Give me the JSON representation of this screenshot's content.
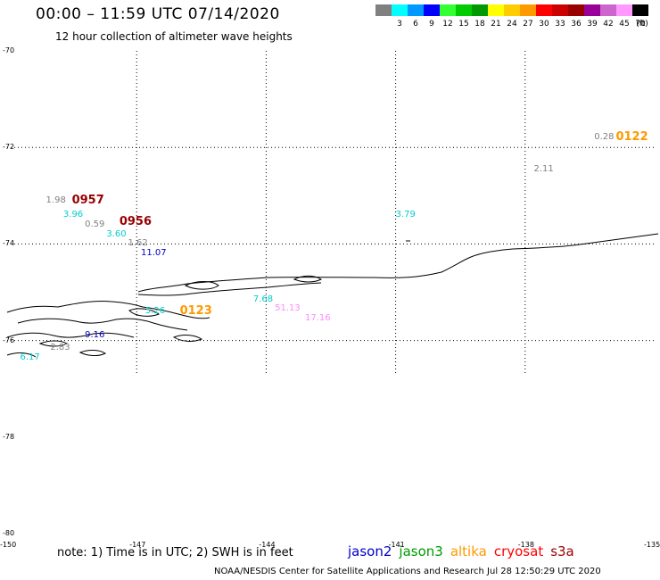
{
  "header": {
    "title": "00:00 – 11:59 UTC 07/14/2020",
    "subtitle": "12 hour collection of altimeter wave heights"
  },
  "colorbar": {
    "unit": "(ft)",
    "swatches": [
      {
        "label": "",
        "color": "#808080"
      },
      {
        "label": "3",
        "color": "#00ffff"
      },
      {
        "label": "6",
        "color": "#0099ff"
      },
      {
        "label": "9",
        "color": "#0000ff"
      },
      {
        "label": "12",
        "color": "#33ff33"
      },
      {
        "label": "15",
        "color": "#00cc00"
      },
      {
        "label": "18",
        "color": "#009900"
      },
      {
        "label": "21",
        "color": "#ffff00"
      },
      {
        "label": "24",
        "color": "#ffcc00"
      },
      {
        "label": "27",
        "color": "#ff9900"
      },
      {
        "label": "30",
        "color": "#ff0000"
      },
      {
        "label": "33",
        "color": "#cc0000"
      },
      {
        "label": "36",
        "color": "#990000"
      },
      {
        "label": "39",
        "color": "#990099"
      },
      {
        "label": "42",
        "color": "#cc66cc"
      },
      {
        "label": "45",
        "color": "#ff99ff"
      },
      {
        "label": "70",
        "color": "#000000"
      }
    ]
  },
  "axes": {
    "lat_labels": [
      "-70",
      "-72",
      "-74",
      "-76",
      "-78",
      "-80"
    ],
    "lon_labels": [
      "-150",
      "-147",
      "-144",
      "-141",
      "-138",
      "-135"
    ]
  },
  "observations": [
    {
      "text": "0.28",
      "color": "#808080",
      "lon": -136.4,
      "lat": -71.8
    },
    {
      "text": "2.11",
      "color": "#808080",
      "lon": -137.8,
      "lat": -72.45
    },
    {
      "text": "3.79",
      "color": "#00cccc",
      "lon": -141.0,
      "lat": -73.4
    },
    {
      "text": "1.98",
      "color": "#808080",
      "lon": -149.1,
      "lat": -73.1
    },
    {
      "text": "3.96",
      "color": "#00cccc",
      "lon": -148.7,
      "lat": -73.4
    },
    {
      "text": "0.59",
      "color": "#808080",
      "lon": -148.2,
      "lat": -73.6
    },
    {
      "text": "3.60",
      "color": "#00cccc",
      "lon": -147.7,
      "lat": -73.8
    },
    {
      "text": "1.62",
      "color": "#808080",
      "lon": -147.2,
      "lat": -74.0
    },
    {
      "text": "11.07",
      "color": "#0000cc",
      "lon": -146.9,
      "lat": -74.2
    },
    {
      "text": "7.68",
      "color": "#00cccc",
      "lon": -144.3,
      "lat": -75.15
    },
    {
      "text": "51.13",
      "color": "#ff88ff",
      "lon": -143.8,
      "lat": -75.35
    },
    {
      "text": "17.16",
      "color": "#ff88ff",
      "lon": -143.1,
      "lat": -75.55
    },
    {
      "text": "5.26",
      "color": "#00cccc",
      "lon": -146.8,
      "lat": -75.4
    },
    {
      "text": "9.16",
      "color": "#0000cc",
      "lon": -148.2,
      "lat": -75.9
    },
    {
      "text": "2.83",
      "color": "#808080",
      "lon": -149.0,
      "lat": -76.15
    },
    {
      "text": "6.17",
      "color": "#00cccc",
      "lon": -149.7,
      "lat": -76.35
    }
  ],
  "passes": [
    {
      "text": "0122",
      "color": "#ff9900",
      "lon": -135.9,
      "lat": -71.8
    },
    {
      "text": "0957",
      "color": "#990000",
      "lon": -148.5,
      "lat": -73.1
    },
    {
      "text": "0956",
      "color": "#990000",
      "lon": -147.4,
      "lat": -73.55
    },
    {
      "text": "0123",
      "color": "#ff9900",
      "lon": -146.0,
      "lat": -75.4
    }
  ],
  "note": "note: 1) Time is in UTC; 2) SWH is in feet",
  "legend": [
    {
      "label": "jason2",
      "color": "#0000cc"
    },
    {
      "label": "jason3",
      "color": "#009900"
    },
    {
      "label": "altika",
      "color": "#ff9900"
    },
    {
      "label": "cryosat",
      "color": "#ff0000"
    },
    {
      "label": "s3a",
      "color": "#990000"
    }
  ],
  "credit": "NOAA/NESDIS Center for Satellite Applications and Research    Jul 28 12:50:29 UTC 2020"
}
